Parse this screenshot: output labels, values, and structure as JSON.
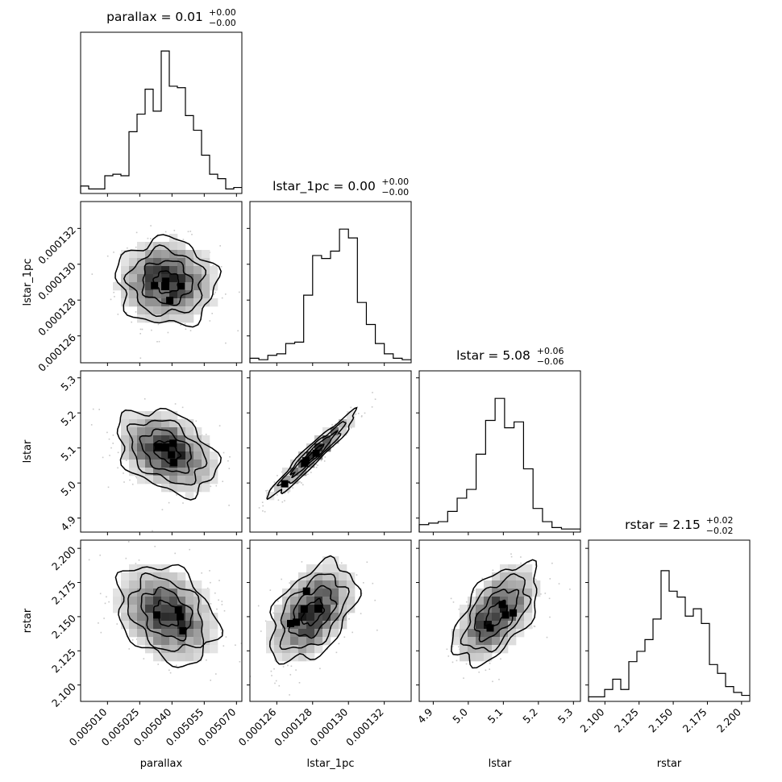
{
  "chart_data": {
    "type": "corner",
    "params": [
      {
        "name": "parallax",
        "title_main": "parallax = 0.01",
        "title_up": "+0.00",
        "title_down": "−0.00",
        "ticks": [
          "0.005010",
          "0.005025",
          "0.005040",
          "0.005055",
          "0.005070"
        ],
        "range": [
          0.0049975,
          0.0050725
        ],
        "tick_vals": [
          0.00501,
          0.005025,
          0.00504,
          0.005055,
          0.00507
        ]
      },
      {
        "name": "lstar_1pc",
        "title_main": "lstar_1pc = 0.00",
        "title_up": "+0.00",
        "title_down": "−0.00",
        "ticks": [
          "0.000126",
          "0.000128",
          "0.000130",
          "0.000132"
        ],
        "range": [
          0.0001245,
          0.0001335
        ],
        "tick_vals": [
          0.000126,
          0.000128,
          0.00013,
          0.000132
        ]
      },
      {
        "name": "lstar",
        "title_main": "lstar = 5.08",
        "title_up": "+0.06",
        "title_down": "−0.06",
        "ticks": [
          "4.9",
          "5.0",
          "5.1",
          "5.2",
          "5.3"
        ],
        "range": [
          4.86,
          5.32
        ],
        "tick_vals": [
          4.9,
          5.0,
          5.1,
          5.2,
          5.3
        ]
      },
      {
        "name": "rstar",
        "title_main": "rstar = 2.15",
        "title_up": "+0.02",
        "title_down": "−0.02",
        "ticks": [
          "2.100",
          "2.125",
          "2.150",
          "2.175",
          "2.200"
        ],
        "range": [
          2.088,
          2.206
        ],
        "tick_vals": [
          2.1,
          2.125,
          2.15,
          2.175,
          2.2
        ]
      }
    ],
    "histograms": [
      [
        0.04,
        0.02,
        0.02,
        0.11,
        0.12,
        0.11,
        0.41,
        0.53,
        0.7,
        0.55,
        0.96,
        0.72,
        0.71,
        0.52,
        0.42,
        0.25,
        0.12,
        0.09,
        0.02,
        0.03
      ],
      [
        0.02,
        0.01,
        0.04,
        0.05,
        0.12,
        0.13,
        0.45,
        0.72,
        0.7,
        0.75,
        0.9,
        0.84,
        0.4,
        0.25,
        0.12,
        0.05,
        0.02,
        0.01
      ],
      [
        0.04,
        0.05,
        0.06,
        0.13,
        0.22,
        0.28,
        0.52,
        0.75,
        0.9,
        0.7,
        0.74,
        0.42,
        0.15,
        0.06,
        0.02,
        0.01,
        0.01
      ],
      [
        0.02,
        0.02,
        0.07,
        0.14,
        0.07,
        0.26,
        0.33,
        0.41,
        0.55,
        0.88,
        0.74,
        0.7,
        0.57,
        0.62,
        0.52,
        0.24,
        0.18,
        0.09,
        0.05,
        0.03
      ]
    ],
    "pairs": [
      {
        "row": 1,
        "col": 0,
        "center": [
          0.0050375,
          0.000129
        ],
        "sd": [
          1.15e-05,
          1.2e-06
        ],
        "rho": -0.05
      },
      {
        "row": 2,
        "col": 0,
        "center": [
          0.0050375,
          5.09
        ],
        "sd": [
          1.15e-05,
          0.06
        ],
        "rho": -0.35
      },
      {
        "row": 2,
        "col": 1,
        "center": [
          0.000128,
          5.08
        ],
        "sd": [
          1.2e-06,
          0.06
        ],
        "rho": 0.96
      },
      {
        "row": 3,
        "col": 0,
        "center": [
          0.0050375,
          2.152
        ],
        "sd": [
          1.15e-05,
          0.018
        ],
        "rho": -0.3
      },
      {
        "row": 3,
        "col": 1,
        "center": [
          0.000128,
          2.153
        ],
        "sd": [
          1.2e-06,
          0.018
        ],
        "rho": 0.45
      },
      {
        "row": 3,
        "col": 2,
        "center": [
          5.08,
          2.152
        ],
        "sd": [
          0.06,
          0.018
        ],
        "rho": 0.55
      }
    ]
  }
}
